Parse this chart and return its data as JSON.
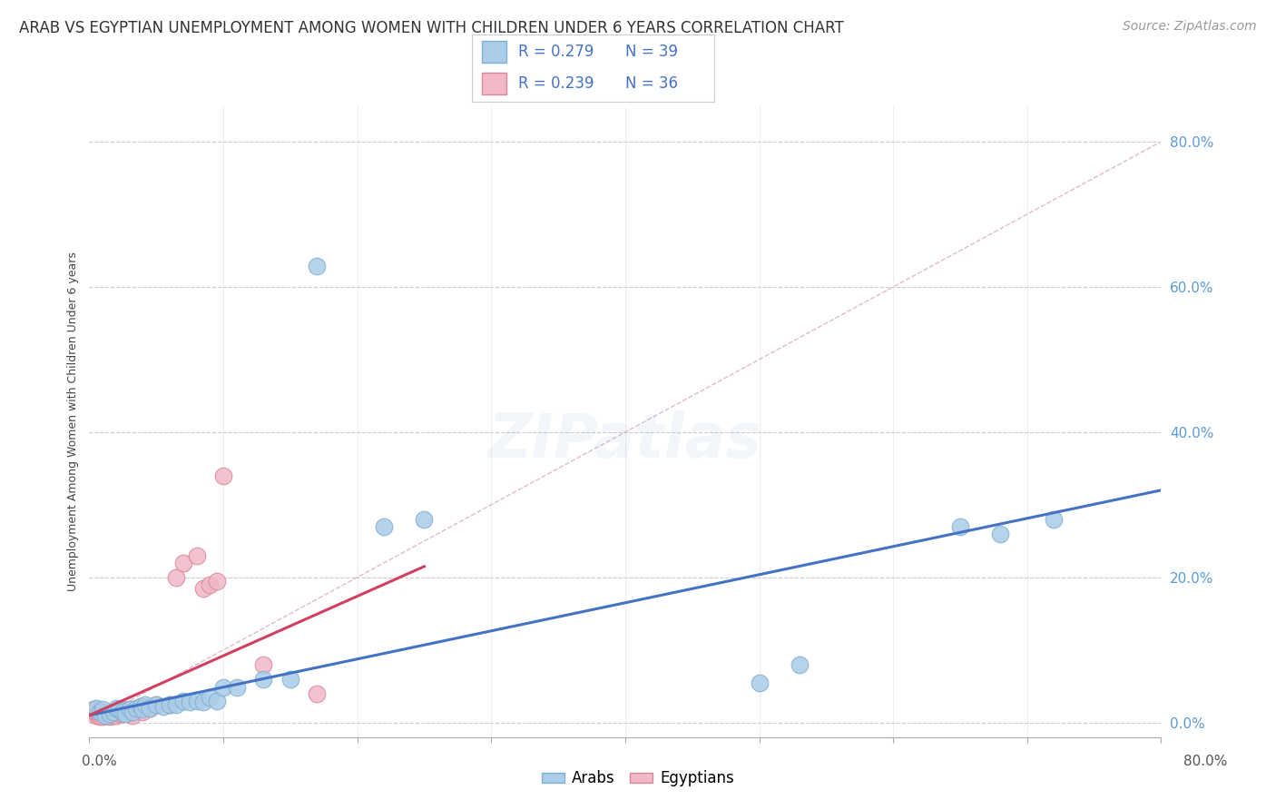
{
  "title": "ARAB VS EGYPTIAN UNEMPLOYMENT AMONG WOMEN WITH CHILDREN UNDER 6 YEARS CORRELATION CHART",
  "source": "Source: ZipAtlas.com",
  "ylabel": "Unemployment Among Women with Children Under 6 years",
  "xlim": [
    0.0,
    0.8
  ],
  "ylim": [
    -0.02,
    0.85
  ],
  "ytick_values": [
    0.0,
    0.2,
    0.4,
    0.6,
    0.8
  ],
  "xtick_values": [
    0.0,
    0.1,
    0.2,
    0.3,
    0.4,
    0.5,
    0.6,
    0.7,
    0.8
  ],
  "legend_arab_r": "R = 0.279",
  "legend_arab_n": "N = 39",
  "legend_egypt_r": "R = 0.239",
  "legend_egypt_n": "N = 36",
  "watermark": "ZIPatlas",
  "arab_color": "#aacce8",
  "arab_edge_color": "#80afd0",
  "egypt_color": "#f0b8c8",
  "egypt_edge_color": "#d88898",
  "arab_line_color": "#4472c4",
  "egypt_line_color": "#d04060",
  "diagonal_color": "#ddbbcc",
  "arab_points_x": [
    0.005,
    0.008,
    0.01,
    0.012,
    0.015,
    0.018,
    0.02,
    0.022,
    0.025,
    0.027,
    0.03,
    0.032,
    0.035,
    0.038,
    0.04,
    0.042,
    0.045,
    0.05,
    0.055,
    0.06,
    0.065,
    0.07,
    0.075,
    0.08,
    0.085,
    0.09,
    0.095,
    0.1,
    0.11,
    0.13,
    0.15,
    0.17,
    0.22,
    0.25,
    0.5,
    0.53,
    0.65,
    0.68,
    0.72
  ],
  "arab_points_y": [
    0.02,
    0.015,
    0.018,
    0.01,
    0.012,
    0.015,
    0.02,
    0.018,
    0.015,
    0.012,
    0.018,
    0.015,
    0.02,
    0.022,
    0.018,
    0.025,
    0.02,
    0.025,
    0.022,
    0.025,
    0.025,
    0.03,
    0.028,
    0.03,
    0.028,
    0.035,
    0.03,
    0.048,
    0.048,
    0.06,
    0.06,
    0.628,
    0.27,
    0.28,
    0.055,
    0.08,
    0.27,
    0.26,
    0.28
  ],
  "egypt_points_x": [
    0.003,
    0.005,
    0.006,
    0.007,
    0.008,
    0.008,
    0.01,
    0.01,
    0.012,
    0.015,
    0.015,
    0.018,
    0.02,
    0.022,
    0.022,
    0.025,
    0.025,
    0.028,
    0.03,
    0.03,
    0.032,
    0.035,
    0.038,
    0.04,
    0.045,
    0.05,
    0.06,
    0.065,
    0.07,
    0.08,
    0.085,
    0.09,
    0.095,
    0.1,
    0.13,
    0.17
  ],
  "egypt_points_y": [
    0.018,
    0.01,
    0.012,
    0.01,
    0.008,
    0.012,
    0.008,
    0.015,
    0.01,
    0.008,
    0.012,
    0.01,
    0.01,
    0.012,
    0.015,
    0.012,
    0.018,
    0.015,
    0.012,
    0.018,
    0.01,
    0.018,
    0.022,
    0.015,
    0.02,
    0.025,
    0.025,
    0.2,
    0.22,
    0.23,
    0.185,
    0.19,
    0.195,
    0.34,
    0.08,
    0.04
  ],
  "arab_line_x": [
    0.0,
    0.8
  ],
  "arab_line_y": [
    0.01,
    0.32
  ],
  "egypt_line_x": [
    0.0,
    0.25
  ],
  "egypt_line_y": [
    0.01,
    0.215
  ],
  "diag_line_x": [
    0.0,
    0.8
  ],
  "diag_line_y": [
    0.0,
    0.8
  ],
  "background_color": "#ffffff",
  "title_fontsize": 12,
  "source_fontsize": 10,
  "axis_label_fontsize": 9,
  "tick_fontsize": 11,
  "legend_fontsize": 12,
  "watermark_fontsize": 48,
  "watermark_alpha": 0.1,
  "watermark_color": "#88aad0"
}
